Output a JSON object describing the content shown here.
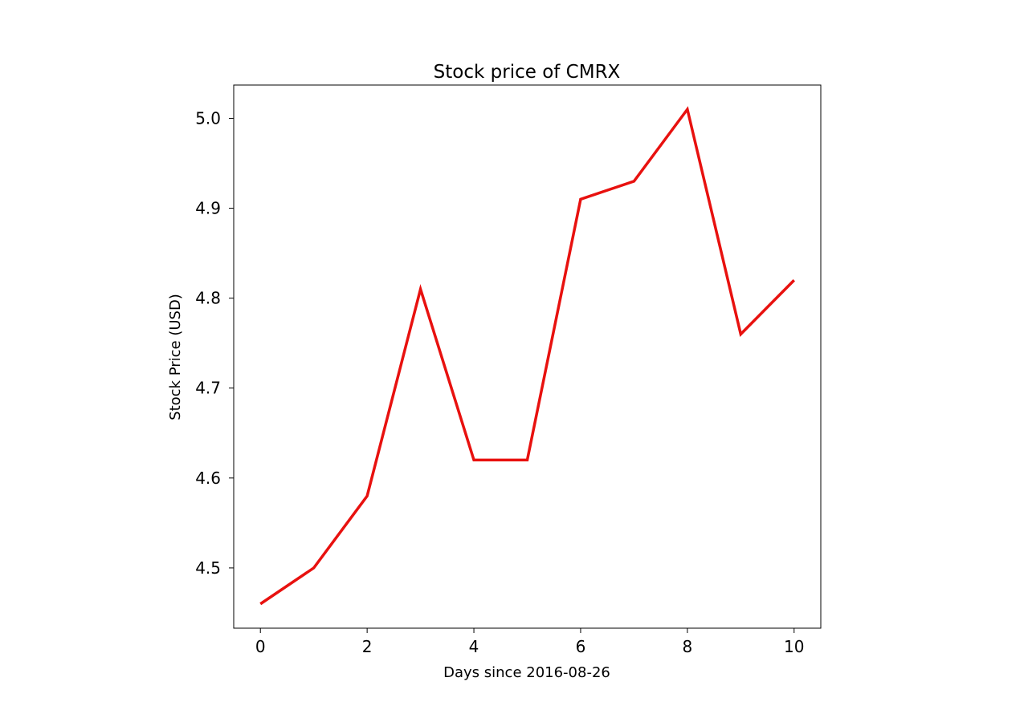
{
  "chart_data": {
    "type": "line",
    "title": "Stock price of CMRX",
    "xlabel": "Days since 2016-08-26",
    "ylabel": "Stock Price (USD)",
    "x": [
      0,
      1,
      2,
      3,
      4,
      5,
      6,
      7,
      8,
      9,
      10
    ],
    "series": [
      {
        "values": [
          4.46,
          4.5,
          4.58,
          4.81,
          4.62,
          4.62,
          4.91,
          4.93,
          5.01,
          4.76,
          4.82
        ],
        "color": "#e8110f"
      }
    ],
    "xticks": [
      "0",
      "2",
      "4",
      "6",
      "8",
      "10"
    ],
    "yticks": [
      "4.5",
      "4.6",
      "4.7",
      "4.8",
      "4.9",
      "5.0"
    ],
    "xlim": [
      -0.5,
      10.5
    ],
    "ylim": [
      4.433,
      5.037
    ],
    "grid": false,
    "legend": "none"
  }
}
